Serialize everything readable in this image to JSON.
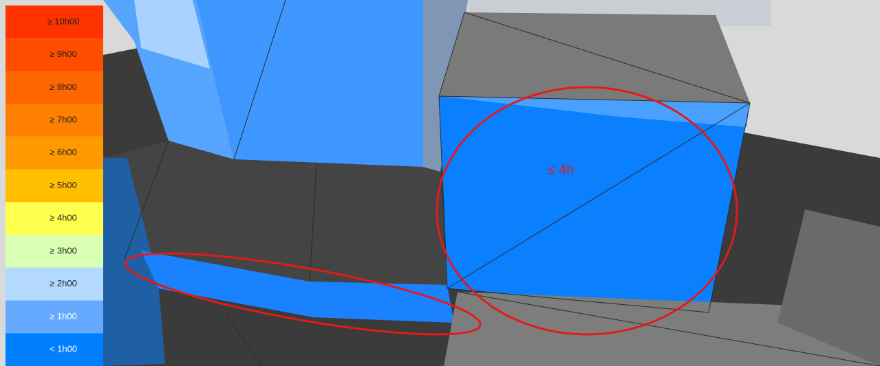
{
  "legend": {
    "items": [
      {
        "label": "≥ 10h00",
        "color": "#ff3300"
      },
      {
        "label": "≥ 9h00",
        "color": "#ff4d00"
      },
      {
        "label": "≥ 8h00",
        "color": "#ff6600"
      },
      {
        "label": "≥ 7h00",
        "color": "#ff8000"
      },
      {
        "label": "≥ 6h00",
        "color": "#ff9900"
      },
      {
        "label": "≥ 5h00",
        "color": "#ffbf00"
      },
      {
        "label": "≥ 4h00",
        "color": "#ffff4d"
      },
      {
        "label": "≥ 3h00",
        "color": "#d9ffb3"
      },
      {
        "label": "≥ 2h00",
        "color": "#b3d9ff"
      },
      {
        "label": "≥ 1h00",
        "color": "#66aaff"
      },
      {
        "label": "< 1h00",
        "color": "#0080ff"
      }
    ]
  },
  "annotation": {
    "text": "≤ 4h"
  }
}
